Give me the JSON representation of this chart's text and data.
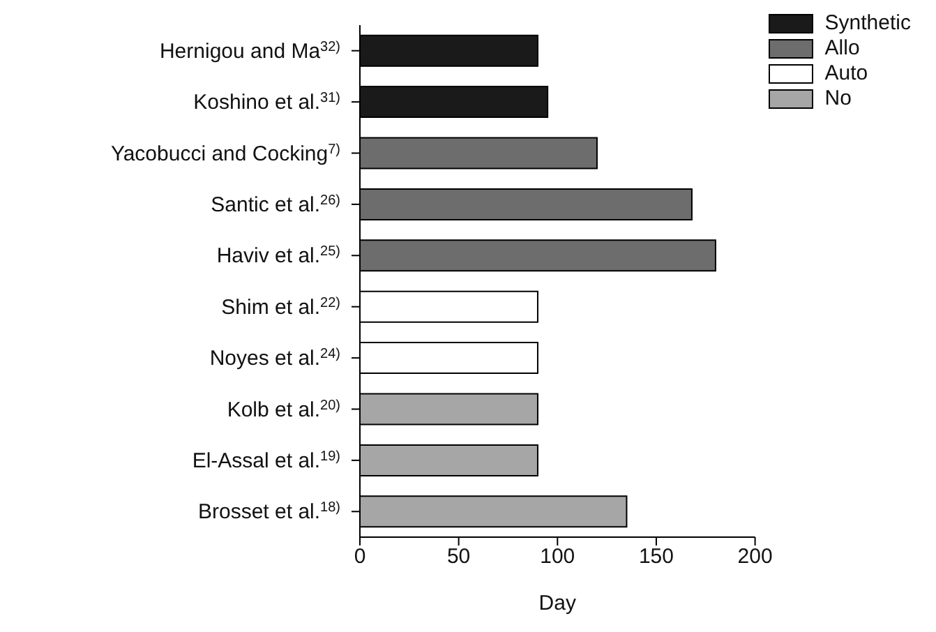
{
  "chart_data": {
    "type": "bar",
    "orientation": "horizontal",
    "stacked": true,
    "xlabel": "Day",
    "categories": [
      "Hernigou and Ma$^{32)}$",
      "Koshino et al.$^{31)}$",
      "Yacobucci and Cocking$^{7)}$",
      "Santic et al.$^{26)}$",
      "Haviv et al.$^{25)}$",
      "Shim et al.$^{22)}$",
      "Noyes et al.$^{24)}$",
      "Kolb et al.$^{20)}$",
      "El-Assal et al.$^{19)}$",
      "Brosset et al.$^{18)}$"
    ],
    "series": [
      {
        "name": "Synthetic",
        "color": "#1a1a1a",
        "values": [
          90,
          95,
          null,
          null,
          null,
          null,
          null,
          null,
          null,
          null
        ]
      },
      {
        "name": "Allo",
        "color": "#6d6d6d",
        "values": [
          null,
          null,
          120,
          168,
          180,
          null,
          null,
          null,
          null,
          null
        ]
      },
      {
        "name": "Auto",
        "color": "#ffffff",
        "values": [
          null,
          null,
          null,
          null,
          null,
          90,
          90,
          null,
          null,
          null
        ]
      },
      {
        "name": "No",
        "color": "#a6a6a6",
        "values": [
          null,
          null,
          null,
          null,
          null,
          null,
          null,
          90,
          90,
          135
        ]
      }
    ],
    "xlim": [
      0,
      200
    ],
    "xticks": [
      0,
      50,
      100,
      150,
      200
    ],
    "legend": "top right"
  }
}
